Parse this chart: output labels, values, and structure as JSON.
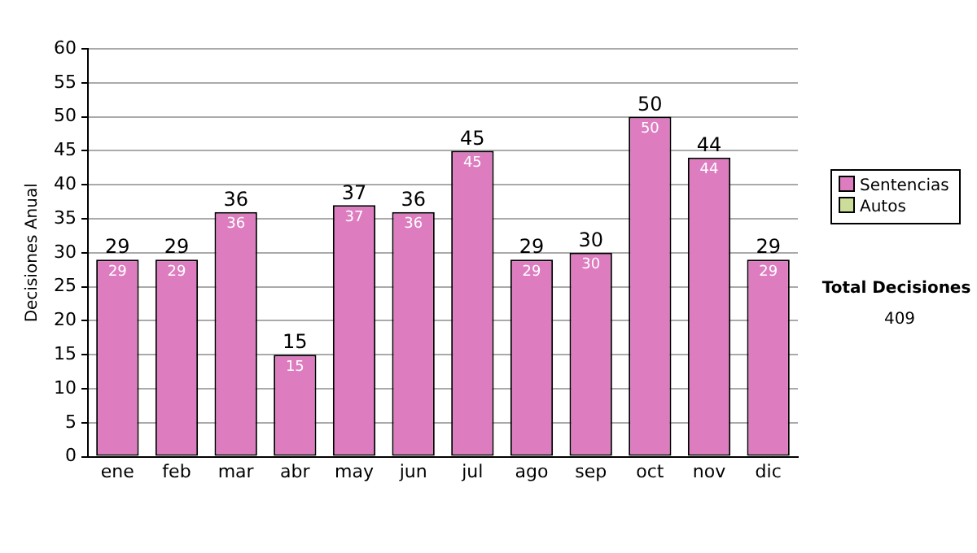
{
  "chart_data": {
    "type": "bar",
    "stacked": true,
    "ylabel": "Decisiones Anual",
    "categories": [
      "ene",
      "feb",
      "mar",
      "abr",
      "may",
      "jun",
      "jul",
      "ago",
      "sep",
      "oct",
      "nov",
      "dic"
    ],
    "series": [
      {
        "name": "Sentencias",
        "color": "#dd7dc0",
        "values": [
          29,
          29,
          36,
          15,
          37,
          36,
          45,
          29,
          30,
          50,
          44,
          29
        ],
        "value_labels": [
          "29",
          "29",
          "36",
          "15",
          "37",
          "36",
          "45",
          "29",
          "30",
          "50",
          "44",
          "29"
        ]
      },
      {
        "name": "Autos",
        "color": "#ccdd99",
        "values": [
          0,
          0,
          0,
          0,
          0,
          0,
          0,
          0,
          0,
          0,
          0,
          0
        ]
      }
    ],
    "totals": [
      "29",
      "29",
      "36",
      "15",
      "37",
      "36",
      "45",
      "29",
      "30",
      "50",
      "44",
      "29"
    ],
    "ylim": [
      0,
      60
    ],
    "yticks": [
      0,
      5,
      10,
      15,
      20,
      25,
      30,
      35,
      40,
      45,
      50,
      55,
      60
    ],
    "grid": "y",
    "legend": "right",
    "annotations": [
      "Total Decisiones",
      "409"
    ]
  }
}
